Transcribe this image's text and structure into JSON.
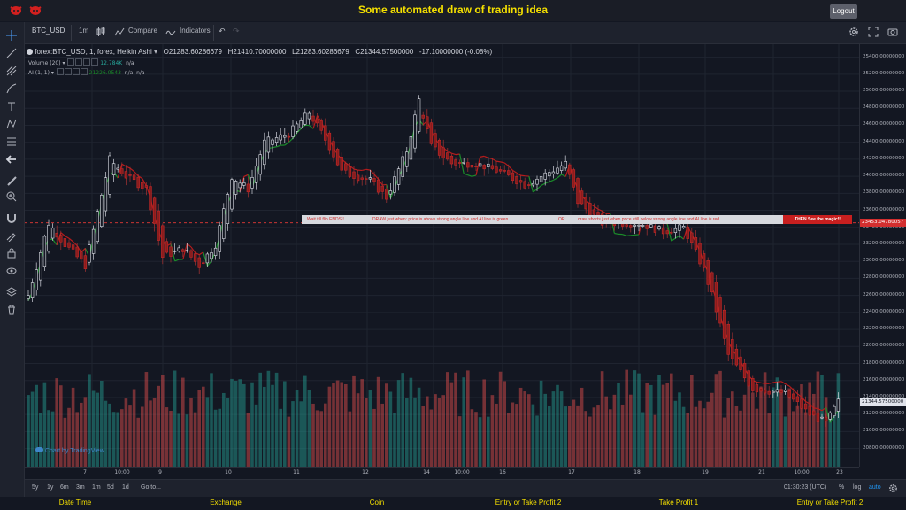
{
  "header": {
    "title": "Some automated draw of trading idea",
    "logout_label": "Logout"
  },
  "toolbar": {
    "symbol": "BTC_USD",
    "interval": "1m",
    "compare_label": "Compare",
    "indicators_label": "Indicators"
  },
  "legend": {
    "main": "forex:BTC_USD, 1, forex, Heikin Ashi",
    "open": "O21283.60286679",
    "high": "H21410.70000000",
    "low": "L21283.60286679",
    "close": "C21344.57500000",
    "change": "-17.10000000 (-0.08%)",
    "volume_name": "Volume (20)",
    "volume_value": "12.784K",
    "volume_extra": "n/a",
    "ai_name": "AI (1, 1)",
    "ai_value": "21226.0543",
    "ai_extra1": "n/a",
    "ai_extra2": "n/a"
  },
  "banner": {
    "part1": "Wait till flip ENDS !",
    "part2": "DRAW just when:  price is above strong angle line and AI line is green",
    "part3": "OR",
    "part4": "draw shorts just when price still below strong angle line and AI line is red",
    "part5": "THEN See the magic!!"
  },
  "watermark": "Chart by TradingView",
  "price_axis": {
    "labels": [
      "25400.00000000",
      "25200.00000000",
      "25000.00000000",
      "24800.00000000",
      "24600.00000000",
      "24400.00000000",
      "24200.00000000",
      "24000.00000000",
      "23800.00000000",
      "23600.00000000",
      "23400.00000000",
      "23200.00000000",
      "23000.00000000",
      "22800.00000000",
      "22600.00000000",
      "22400.00000000",
      "22200.00000000",
      "22000.00000000",
      "21800.00000000",
      "21600.00000000",
      "21400.00000000",
      "21200.00000000",
      "21000.00000000",
      "20800.00000000"
    ],
    "marker_level": "23453.04780057",
    "last_price": "21344.57500000"
  },
  "time_axis": {
    "labels": [
      "7",
      "10:00",
      "9",
      "10",
      "11",
      "12",
      "14",
      "10:00",
      "16",
      "17",
      "18",
      "19",
      "21",
      "10:00",
      "23"
    ]
  },
  "bottombar": {
    "ranges": [
      "5y",
      "1y",
      "6m",
      "3m",
      "1m",
      "5d",
      "1d"
    ],
    "goto_label": "Go to...",
    "clock": "01:30:23 (UTC)",
    "percent_label": "%",
    "log_label": "log",
    "auto_label": "auto"
  },
  "footer": {
    "columns": [
      "Date Time",
      "Exchange",
      "Coin",
      "Entry or Take Profit 2",
      "Take Profit 1",
      "Entry or Take Profit 2"
    ]
  },
  "chart_data": {
    "type": "candlestick",
    "style": "Heikin Ashi",
    "symbol": "forex:BTC_USD",
    "ylim": [
      20650,
      25500
    ],
    "anchors": [
      [
        0,
        22600
      ],
      [
        5,
        23450
      ],
      [
        9,
        23200
      ],
      [
        14,
        22950
      ],
      [
        20,
        24200
      ],
      [
        24,
        24000
      ],
      [
        29,
        23850
      ],
      [
        33,
        23050
      ],
      [
        38,
        23150
      ],
      [
        42,
        22950
      ],
      [
        46,
        23200
      ],
      [
        50,
        24000
      ],
      [
        54,
        23850
      ],
      [
        58,
        24400
      ],
      [
        64,
        24500
      ],
      [
        69,
        24750
      ],
      [
        74,
        24350
      ],
      [
        77,
        24050
      ],
      [
        84,
        23950
      ],
      [
        88,
        23750
      ],
      [
        93,
        24300
      ],
      [
        96,
        24900
      ],
      [
        99,
        24350
      ],
      [
        104,
        24150
      ],
      [
        110,
        24150
      ],
      [
        116,
        24050
      ],
      [
        122,
        23900
      ],
      [
        128,
        24050
      ],
      [
        132,
        24150
      ],
      [
        135,
        23700
      ],
      [
        141,
        23450
      ],
      [
        150,
        23450
      ],
      [
        156,
        23350
      ],
      [
        161,
        23400
      ],
      [
        166,
        22900
      ],
      [
        168,
        22600
      ],
      [
        172,
        21900
      ],
      [
        178,
        21500
      ],
      [
        186,
        21450
      ],
      [
        192,
        21200
      ],
      [
        196,
        21100
      ],
      [
        199,
        21350
      ]
    ],
    "volume": {
      "name": "Volume (20)",
      "value": "12.784K"
    }
  },
  "colors": {
    "background": "#131722",
    "up_volume": "#26a69a",
    "down_volume": "#ef5350",
    "ai_green": "#1b8c2a",
    "ai_red": "#b71c1c",
    "title": "#f5e000"
  }
}
